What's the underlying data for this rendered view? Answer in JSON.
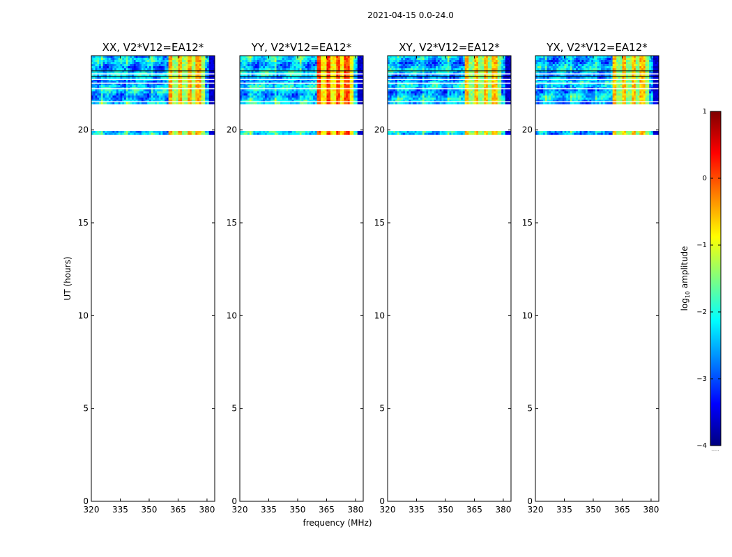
{
  "figure": {
    "suptitle": "2021-04-15 0.0-24.0",
    "xlabel": "frequency (MHz)",
    "ylabel": "UT (hours)"
  },
  "colorbar": {
    "label_prefix": "log",
    "label_sub": "10",
    "label_suffix": " amplitude",
    "range": [
      -4,
      1
    ],
    "ticks": [
      1,
      0,
      -1,
      -2,
      -3,
      -4
    ],
    "tick_labels": [
      "1",
      "0",
      "−1",
      "−2",
      "−3",
      "−4"
    ],
    "colormap": "jet",
    "bottom_note": "......"
  },
  "chart_data": [
    {
      "type": "heatmap",
      "title": "XX, V2*V12=EA12*",
      "xlim": [
        320,
        384
      ],
      "ylim": [
        0,
        24
      ],
      "x_ticks": [
        320,
        335,
        350,
        365,
        380
      ],
      "x_tick_labels": [
        "320",
        "335",
        "350",
        "365",
        "380"
      ],
      "y_ticks": [
        0,
        5,
        10,
        15,
        20
      ],
      "y_tick_labels": [
        "0",
        "5",
        "10",
        "15",
        "20"
      ],
      "data_time_blocks_ut": [
        [
          19.75,
          19.95
        ],
        [
          21.4,
          24.0
        ]
      ],
      "background_log_amp": -2.5,
      "rfi_band_mhz": [
        360,
        379
      ],
      "rfi_log_amp": -0.8
    },
    {
      "type": "heatmap",
      "title": "YY, V2*V12=EA12*",
      "xlim": [
        320,
        384
      ],
      "ylim": [
        0,
        24
      ],
      "x_ticks": [
        320,
        335,
        350,
        365,
        380
      ],
      "x_tick_labels": [
        "320",
        "335",
        "350",
        "365",
        "380"
      ],
      "y_ticks": [
        0,
        5,
        10,
        15,
        20
      ],
      "y_tick_labels": [
        "0",
        "5",
        "10",
        "15",
        "20"
      ],
      "data_time_blocks_ut": [
        [
          19.75,
          19.95
        ],
        [
          21.4,
          24.0
        ]
      ],
      "background_log_amp": -2.4,
      "rfi_band_mhz": [
        360,
        379
      ],
      "rfi_log_amp": -0.3
    },
    {
      "type": "heatmap",
      "title": "XY, V2*V12=EA12*",
      "xlim": [
        320,
        384
      ],
      "ylim": [
        0,
        24
      ],
      "x_ticks": [
        320,
        335,
        350,
        365,
        380
      ],
      "x_tick_labels": [
        "320",
        "335",
        "350",
        "365",
        "380"
      ],
      "y_ticks": [
        0,
        5,
        10,
        15,
        20
      ],
      "y_tick_labels": [
        "0",
        "5",
        "10",
        "15",
        "20"
      ],
      "data_time_blocks_ut": [
        [
          19.75,
          19.95
        ],
        [
          21.4,
          24.0
        ]
      ],
      "background_log_amp": -2.5,
      "rfi_band_mhz": [
        360,
        379
      ],
      "rfi_log_amp": -0.9
    },
    {
      "type": "heatmap",
      "title": "YX, V2*V12=EA12*",
      "xlim": [
        320,
        384
      ],
      "ylim": [
        0,
        24
      ],
      "x_ticks": [
        320,
        335,
        350,
        365,
        380
      ],
      "x_tick_labels": [
        "320",
        "335",
        "350",
        "365",
        "380"
      ],
      "y_ticks": [
        0,
        5,
        10,
        15,
        20
      ],
      "y_tick_labels": [
        "0",
        "5",
        "10",
        "15",
        "20"
      ],
      "data_time_blocks_ut": [
        [
          19.75,
          19.95
        ],
        [
          21.4,
          24.0
        ]
      ],
      "background_log_amp": -2.5,
      "rfi_band_mhz": [
        360,
        379
      ],
      "rfi_log_amp": -0.9
    }
  ]
}
